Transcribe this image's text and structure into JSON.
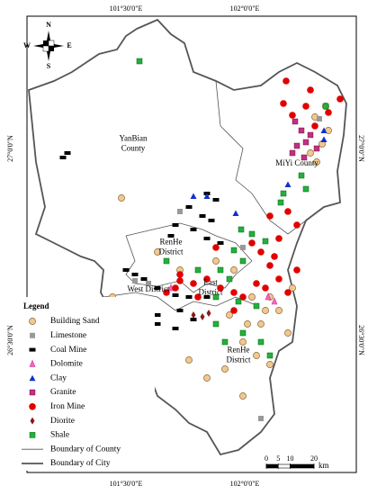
{
  "graticule": {
    "top": [
      "101°30'0\"E",
      "102°0'0\"E"
    ],
    "bottom": [
      "101°30'0\"E",
      "102°0'0\"E"
    ],
    "left": [
      "27°0'0\"N",
      "26°30'0\"N"
    ],
    "right": [
      "27°0'0\"N",
      "26°30'0\"N"
    ]
  },
  "compass": {
    "n": "N",
    "w": "W",
    "e": "E",
    "s": "S"
  },
  "regions": [
    {
      "lines": [
        "YanBian",
        "County"
      ]
    },
    {
      "lines": [
        "MiYi County"
      ]
    },
    {
      "lines": [
        "RenHe",
        "District"
      ]
    },
    {
      "lines": [
        "West District"
      ]
    },
    {
      "lines": [
        "East",
        "District"
      ]
    },
    {
      "lines": [
        "RenHe",
        "District"
      ]
    }
  ],
  "legend": {
    "title": "Legend",
    "items": [
      "Building Sand",
      "Limestone",
      "Coal Mine",
      "Dolomite",
      "Clay",
      "Granite",
      "Iron Mine",
      "Diorite",
      "Shale",
      "Boundary of County",
      "Boundary of City"
    ]
  },
  "scale_bar": {
    "ticks": [
      0,
      5,
      10,
      20
    ],
    "unit": "km"
  }
}
